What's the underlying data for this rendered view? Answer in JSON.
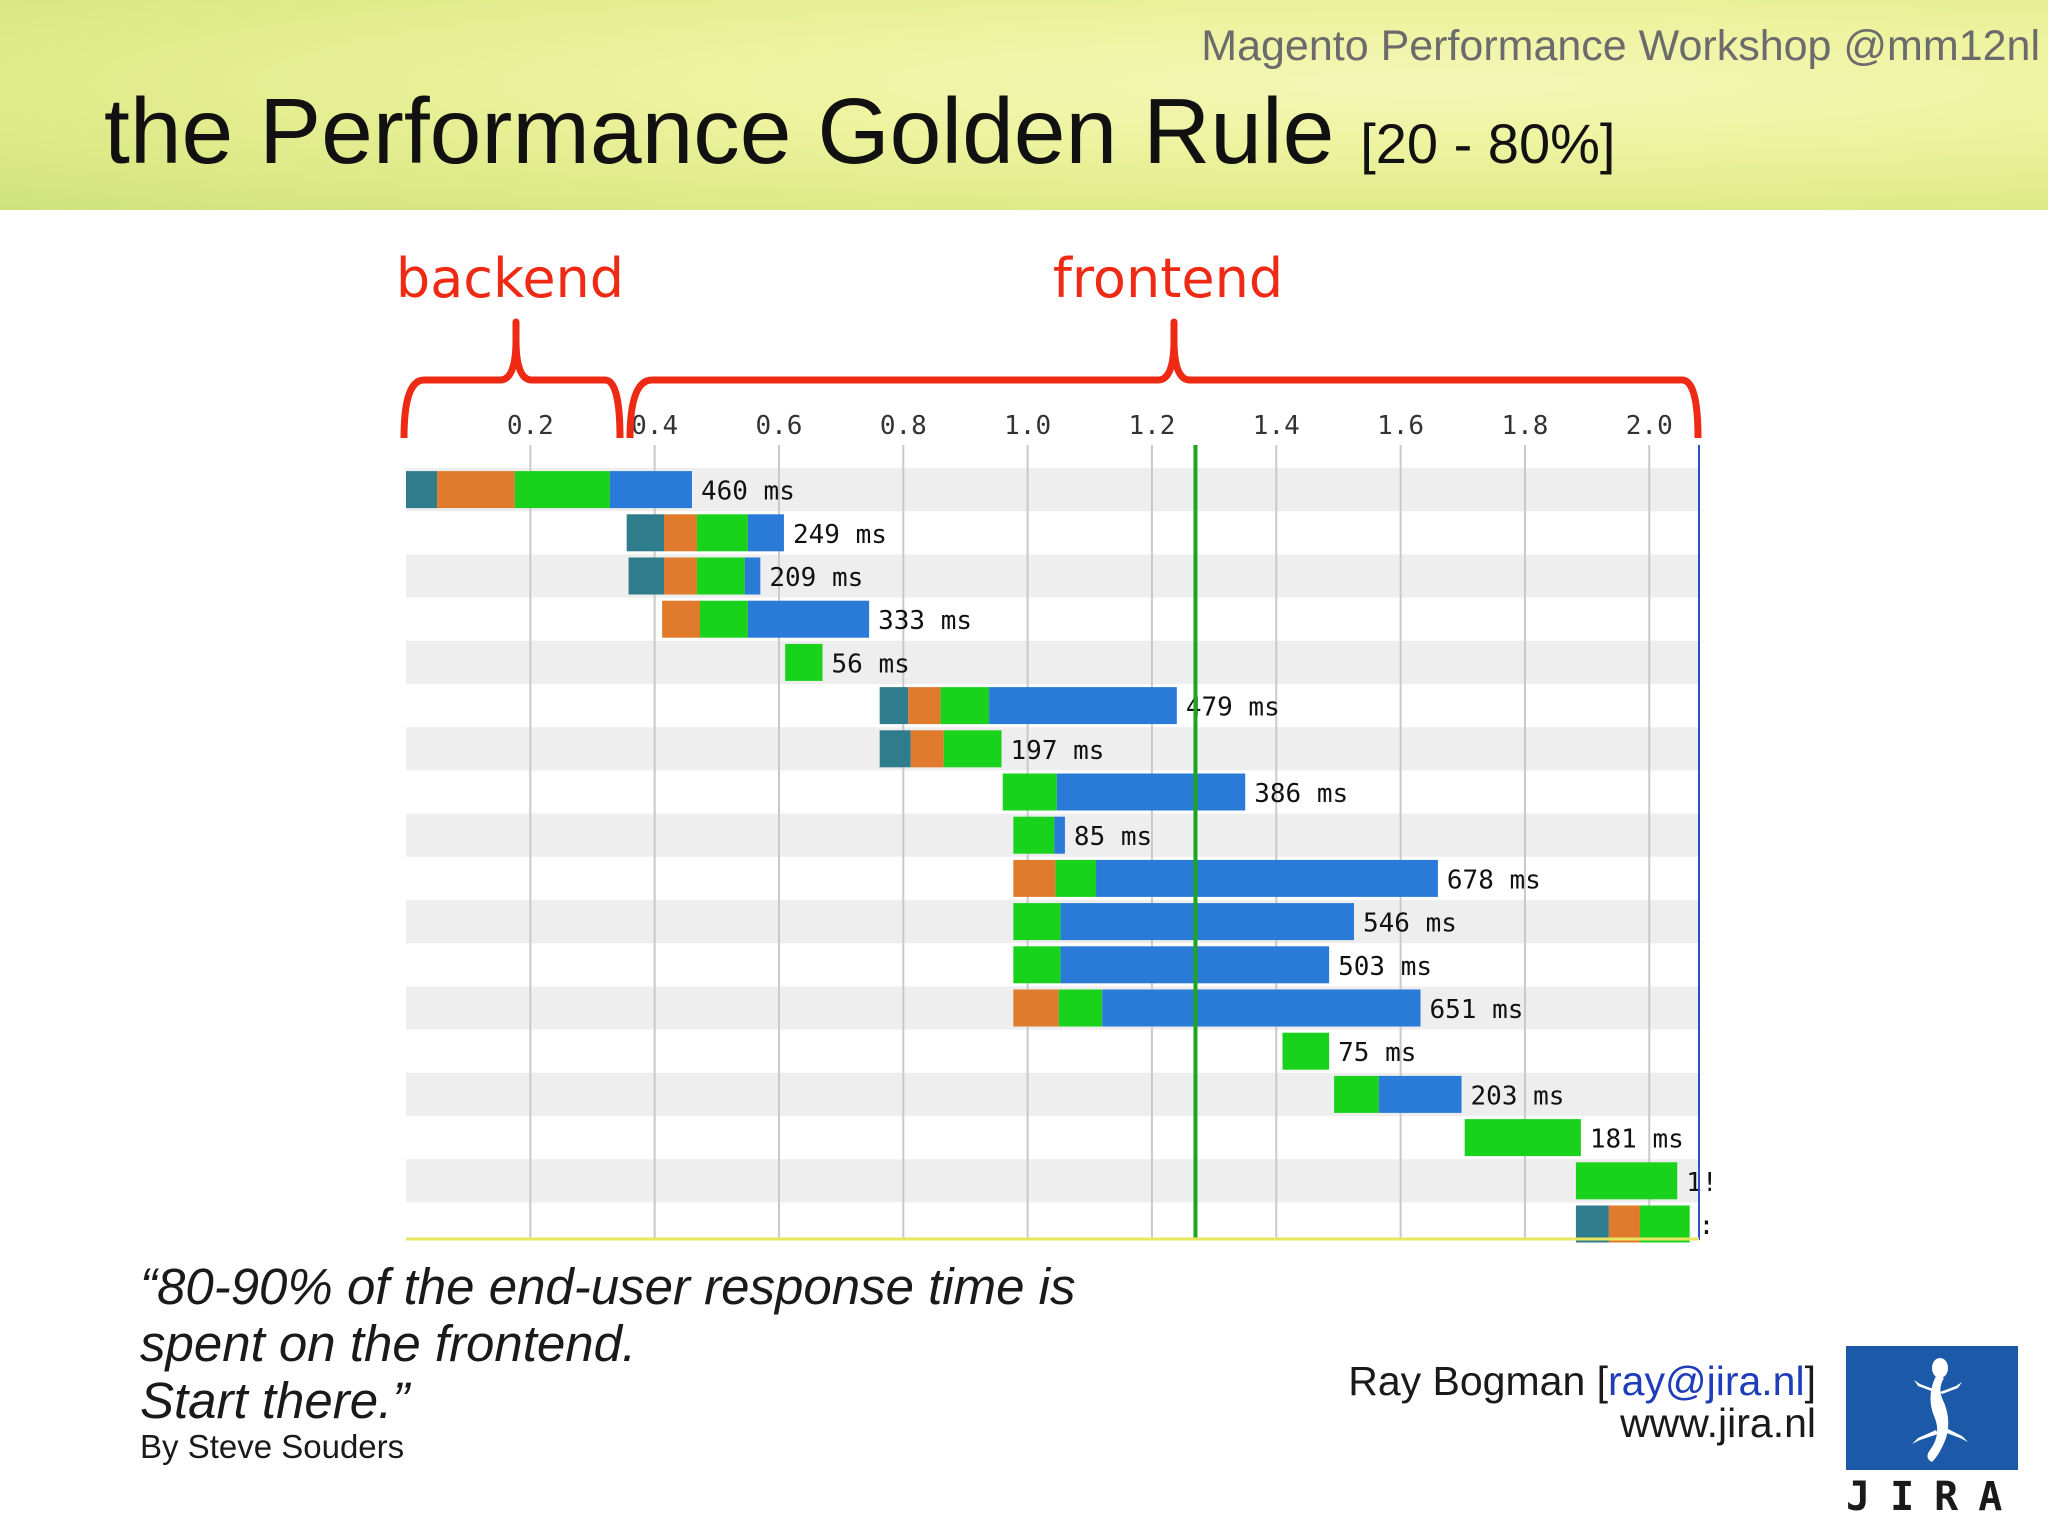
{
  "header": {
    "workshop": "Magento Performance Workshop @mm12nl",
    "title": "the Performance Golden Rule",
    "title_suffix": "[20 - 80%]"
  },
  "annotations": {
    "backend": "backend",
    "frontend": "frontend"
  },
  "colors": {
    "dns": "#2f7d8c",
    "connect": "#e07a2c",
    "ttfb": "#19d21c",
    "download": "#2a7ad8",
    "marker": "#1ea51e",
    "bracket": "#ee2a14",
    "brand": "#1c59a8"
  },
  "chart_data": {
    "type": "bar",
    "x_ticks": [
      "0.2",
      "0.4",
      "0.6",
      "0.8",
      "1.0",
      "1.2",
      "1.4",
      "1.6",
      "1.8",
      "2.0"
    ],
    "xlim": [
      0,
      2.08
    ],
    "marker_x": 1.27,
    "rows": [
      {
        "label": "460 ms",
        "segments": [
          [
            "dns",
            0.0,
            0.05
          ],
          [
            "connect",
            0.05,
            0.175
          ],
          [
            "ttfb",
            0.175,
            0.328
          ],
          [
            "download",
            0.328,
            0.46
          ]
        ]
      },
      {
        "label": "249 ms",
        "segments": [
          [
            "dns",
            0.355,
            0.415
          ],
          [
            "connect",
            0.415,
            0.468
          ],
          [
            "ttfb",
            0.468,
            0.55
          ],
          [
            "download",
            0.55,
            0.608
          ]
        ]
      },
      {
        "label": "209 ms",
        "segments": [
          [
            "dns",
            0.358,
            0.415
          ],
          [
            "connect",
            0.415,
            0.468
          ],
          [
            "ttfb",
            0.468,
            0.545
          ],
          [
            "download",
            0.545,
            0.57
          ]
        ]
      },
      {
        "label": "333 ms",
        "segments": [
          [
            "connect",
            0.412,
            0.473
          ],
          [
            "ttfb",
            0.473,
            0.55
          ],
          [
            "download",
            0.55,
            0.745
          ]
        ]
      },
      {
        "label": "56 ms",
        "segments": [
          [
            "ttfb",
            0.61,
            0.67
          ]
        ]
      },
      {
        "label": "479 ms",
        "segments": [
          [
            "dns",
            0.762,
            0.808
          ],
          [
            "connect",
            0.808,
            0.86
          ],
          [
            "ttfb",
            0.86,
            0.938
          ],
          [
            "download",
            0.938,
            1.24
          ]
        ]
      },
      {
        "label": "197 ms",
        "segments": [
          [
            "dns",
            0.762,
            0.812
          ],
          [
            "connect",
            0.812,
            0.865
          ],
          [
            "ttfb",
            0.865,
            0.958
          ]
        ]
      },
      {
        "label": "386 ms",
        "segments": [
          [
            "ttfb",
            0.96,
            1.047
          ],
          [
            "download",
            1.047,
            1.35
          ]
        ]
      },
      {
        "label": "85 ms",
        "segments": [
          [
            "ttfb",
            0.977,
            1.043
          ],
          [
            "download",
            1.043,
            1.06
          ]
        ]
      },
      {
        "label": "678 ms",
        "segments": [
          [
            "connect",
            0.977,
            1.045
          ],
          [
            "ttfb",
            1.045,
            1.11
          ],
          [
            "download",
            1.11,
            1.66
          ]
        ]
      },
      {
        "label": "546 ms",
        "segments": [
          [
            "ttfb",
            0.977,
            1.053
          ],
          [
            "download",
            1.053,
            1.525
          ]
        ]
      },
      {
        "label": "503 ms",
        "segments": [
          [
            "ttfb",
            0.977,
            1.053
          ],
          [
            "download",
            1.053,
            1.485
          ]
        ]
      },
      {
        "label": "651 ms",
        "segments": [
          [
            "connect",
            0.977,
            1.05
          ],
          [
            "ttfb",
            1.05,
            1.12
          ],
          [
            "download",
            1.12,
            1.632
          ]
        ]
      },
      {
        "label": "75 ms",
        "segments": [
          [
            "ttfb",
            1.41,
            1.485
          ]
        ]
      },
      {
        "label": "203 ms",
        "segments": [
          [
            "ttfb",
            1.493,
            1.565
          ],
          [
            "download",
            1.565,
            1.698
          ]
        ]
      },
      {
        "label": "181 ms",
        "segments": [
          [
            "ttfb",
            1.703,
            1.89
          ]
        ]
      },
      {
        "label": "1!",
        "segments": [
          [
            "ttfb",
            1.882,
            2.045
          ]
        ]
      },
      {
        "label": ":",
        "segments": [
          [
            "dns",
            1.882,
            1.935
          ],
          [
            "connect",
            1.935,
            1.985
          ],
          [
            "ttfb",
            1.985,
            2.065
          ]
        ]
      }
    ]
  },
  "quote": {
    "line1": "“80-90% of the end-user response time is",
    "line2": "spent on the frontend.",
    "line3": "Start there.”",
    "byline": "By Steve Souders"
  },
  "contact": {
    "name_prefix": "Ray Bogman [",
    "email": "ray@jira.nl",
    "name_suffix": "]",
    "website": "www.jira.nl"
  },
  "logo": {
    "text": "JIRA",
    "icon": "gecko-icon"
  }
}
